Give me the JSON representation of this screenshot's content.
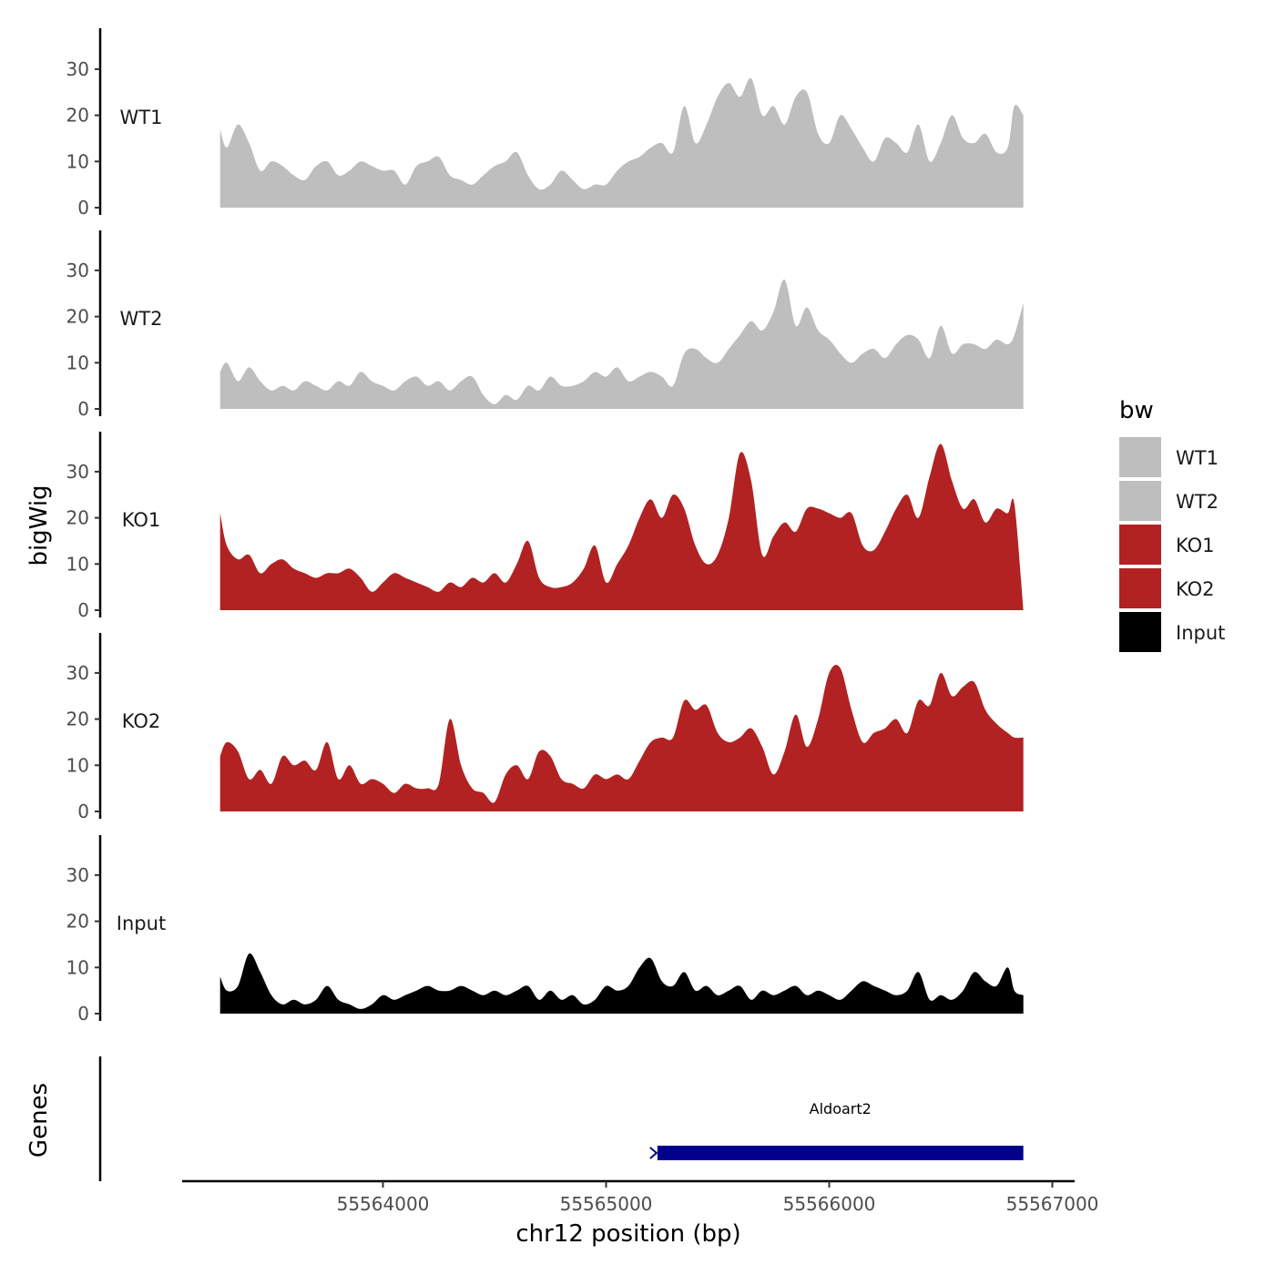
{
  "chart_data": {
    "type": "area",
    "xlabel": "chr12 position (bp)",
    "ylabel": "bigWig",
    "gene_track_label": "Genes",
    "xlim": [
      55563100,
      55567100
    ],
    "x_range_shown": [
      55563270,
      55566870
    ],
    "x_ticks": [
      55564000,
      55565000,
      55566000,
      55567000
    ],
    "x_tick_labels": [
      "55564000",
      "55565000",
      "55566000",
      "55567000"
    ],
    "ylim": [
      0,
      38
    ],
    "y_ticks": [
      0,
      10,
      20,
      30
    ],
    "y_tick_labels": [
      "0",
      "10",
      "20",
      "30"
    ],
    "grid": false,
    "legend": {
      "title": "bw",
      "position": "right",
      "entries": [
        {
          "name": "WT1",
          "color": "#BEBEBE"
        },
        {
          "name": "WT2",
          "color": "#BEBEBE"
        },
        {
          "name": "KO1",
          "color": "#B22222"
        },
        {
          "name": "KO2",
          "color": "#B22222"
        },
        {
          "name": "Input",
          "color": "#000000"
        }
      ]
    },
    "series": [
      {
        "name": "WT1",
        "color": "#BEBEBE",
        "x": [
          55563270,
          55563300,
          55563350,
          55563400,
          55563450,
          55563500,
          55563550,
          55563600,
          55563650,
          55563700,
          55563750,
          55563800,
          55563850,
          55563900,
          55563950,
          55564000,
          55564050,
          55564100,
          55564150,
          55564200,
          55564250,
          55564300,
          55564350,
          55564400,
          55564450,
          55564500,
          55564550,
          55564600,
          55564650,
          55564700,
          55564750,
          55564800,
          55564850,
          55564900,
          55564950,
          55565000,
          55565050,
          55565100,
          55565150,
          55565200,
          55565250,
          55565300,
          55565350,
          55565400,
          55565450,
          55565500,
          55565550,
          55565600,
          55565650,
          55565700,
          55565750,
          55565800,
          55565850,
          55565900,
          55565950,
          55566000,
          55566050,
          55566100,
          55566150,
          55566200,
          55566250,
          55566300,
          55566350,
          55566400,
          55566450,
          55566500,
          55566550,
          55566600,
          55566650,
          55566700,
          55566750,
          55566800,
          55566830,
          55566870
        ],
        "values": [
          17,
          13,
          18,
          14,
          8,
          10,
          9,
          7,
          6,
          9,
          10,
          7,
          8,
          10,
          9,
          8,
          8,
          5,
          9,
          10,
          11,
          7,
          6,
          5,
          7,
          9,
          10,
          12,
          7,
          4,
          5,
          8,
          6,
          4,
          5,
          5,
          8,
          10,
          11,
          13,
          14,
          12,
          22,
          14,
          18,
          24,
          27,
          24,
          28,
          20,
          22,
          18,
          24,
          25,
          16,
          14,
          20,
          17,
          13,
          10,
          15,
          14,
          12,
          18,
          10,
          14,
          20,
          15,
          14,
          16,
          12,
          13,
          22,
          20
        ]
      },
      {
        "name": "WT2",
        "color": "#BEBEBE",
        "x": [
          55563270,
          55563300,
          55563350,
          55563400,
          55563450,
          55563500,
          55563550,
          55563600,
          55563650,
          55563700,
          55563750,
          55563800,
          55563850,
          55563900,
          55563950,
          55564000,
          55564050,
          55564100,
          55564150,
          55564200,
          55564250,
          55564300,
          55564350,
          55564400,
          55564450,
          55564500,
          55564550,
          55564600,
          55564650,
          55564700,
          55564750,
          55564800,
          55564850,
          55564900,
          55564950,
          55565000,
          55565050,
          55565100,
          55565150,
          55565200,
          55565250,
          55565300,
          55565350,
          55565400,
          55565450,
          55565500,
          55565550,
          55565600,
          55565650,
          55565700,
          55565750,
          55565800,
          55565850,
          55565900,
          55565950,
          55566000,
          55566050,
          55566100,
          55566150,
          55566200,
          55566250,
          55566300,
          55566350,
          55566400,
          55566450,
          55566500,
          55566550,
          55566600,
          55566650,
          55566700,
          55566750,
          55566800,
          55566830,
          55566870
        ],
        "values": [
          8,
          10,
          6,
          9,
          6,
          4,
          5,
          4,
          6,
          5,
          4,
          6,
          5,
          8,
          6,
          5,
          4,
          6,
          7,
          5,
          6,
          4,
          6,
          7,
          3,
          1,
          3,
          2,
          5,
          4,
          7,
          5,
          5,
          6,
          8,
          7,
          9,
          6,
          7,
          8,
          7,
          5,
          12,
          13,
          11,
          10,
          13,
          16,
          19,
          17,
          21,
          28,
          18,
          22,
          17,
          15,
          12,
          10,
          12,
          13,
          11,
          14,
          16,
          15,
          11,
          18,
          12,
          14,
          14,
          13,
          15,
          14,
          16,
          23
        ]
      },
      {
        "name": "KO1",
        "color": "#B22222",
        "x": [
          55563270,
          55563300,
          55563350,
          55563400,
          55563450,
          55563500,
          55563550,
          55563600,
          55563650,
          55563700,
          55563750,
          55563800,
          55563850,
          55563900,
          55563950,
          55564000,
          55564050,
          55564100,
          55564150,
          55564200,
          55564250,
          55564300,
          55564350,
          55564400,
          55564450,
          55564500,
          55564550,
          55564600,
          55564650,
          55564700,
          55564750,
          55564800,
          55564850,
          55564900,
          55564950,
          55565000,
          55565050,
          55565100,
          55565150,
          55565200,
          55565250,
          55565300,
          55565350,
          55565400,
          55565450,
          55565500,
          55565550,
          55565600,
          55565650,
          55565700,
          55565750,
          55565800,
          55565850,
          55565900,
          55565950,
          55566000,
          55566050,
          55566100,
          55566150,
          55566200,
          55566250,
          55566300,
          55566350,
          55566400,
          55566450,
          55566500,
          55566550,
          55566600,
          55566650,
          55566700,
          55566750,
          55566800,
          55566830,
          55566870
        ],
        "values": [
          21,
          14,
          11,
          12,
          8,
          10,
          11,
          9,
          8,
          7,
          8,
          8,
          9,
          7,
          4,
          6,
          8,
          7,
          6,
          5,
          4,
          6,
          5,
          7,
          6,
          8,
          6,
          10,
          15,
          7,
          5,
          5,
          6,
          9,
          14,
          6,
          10,
          14,
          20,
          24,
          20,
          25,
          22,
          14,
          10,
          12,
          20,
          34,
          28,
          12,
          16,
          19,
          17,
          22,
          22,
          21,
          20,
          21,
          14,
          13,
          17,
          22,
          25,
          20,
          29,
          36,
          28,
          22,
          24,
          19,
          22,
          21,
          23,
          0
        ]
      },
      {
        "name": "KO2",
        "color": "#B22222",
        "x": [
          55563270,
          55563300,
          55563350,
          55563400,
          55563450,
          55563500,
          55563550,
          55563600,
          55563650,
          55563700,
          55563750,
          55563800,
          55563850,
          55563900,
          55563950,
          55564000,
          55564050,
          55564100,
          55564150,
          55564200,
          55564250,
          55564300,
          55564350,
          55564400,
          55564450,
          55564500,
          55564550,
          55564600,
          55564650,
          55564700,
          55564750,
          55564800,
          55564850,
          55564900,
          55564950,
          55565000,
          55565050,
          55565100,
          55565150,
          55565200,
          55565250,
          55565300,
          55565350,
          55565400,
          55565450,
          55565500,
          55565550,
          55565600,
          55565650,
          55565700,
          55565750,
          55565800,
          55565850,
          55565900,
          55565950,
          55566000,
          55566050,
          55566100,
          55566150,
          55566200,
          55566250,
          55566300,
          55566350,
          55566400,
          55566450,
          55566500,
          55566550,
          55566600,
          55566650,
          55566700,
          55566750,
          55566800,
          55566830,
          55566870
        ],
        "values": [
          12,
          15,
          13,
          7,
          9,
          6,
          12,
          10,
          11,
          9,
          15,
          7,
          10,
          6,
          7,
          6,
          4,
          6,
          5,
          5,
          6,
          20,
          10,
          5,
          4,
          2,
          8,
          10,
          7,
          13,
          12,
          7,
          6,
          5,
          8,
          7,
          8,
          7,
          11,
          15,
          16,
          16,
          24,
          22,
          23,
          17,
          15,
          16,
          18,
          14,
          8,
          13,
          21,
          14,
          20,
          30,
          31,
          22,
          15,
          17,
          18,
          20,
          17,
          24,
          23,
          30,
          25,
          27,
          28,
          22,
          19,
          17,
          16,
          16
        ]
      },
      {
        "name": "Input",
        "color": "#000000",
        "x": [
          55563270,
          55563300,
          55563350,
          55563400,
          55563450,
          55563500,
          55563550,
          55563600,
          55563650,
          55563700,
          55563750,
          55563800,
          55563850,
          55563900,
          55563950,
          55564000,
          55564050,
          55564100,
          55564150,
          55564200,
          55564250,
          55564300,
          55564350,
          55564400,
          55564450,
          55564500,
          55564550,
          55564600,
          55564650,
          55564700,
          55564750,
          55564800,
          55564850,
          55564900,
          55564950,
          55565000,
          55565050,
          55565100,
          55565150,
          55565200,
          55565250,
          55565300,
          55565350,
          55565400,
          55565450,
          55565500,
          55565550,
          55565600,
          55565650,
          55565700,
          55565750,
          55565800,
          55565850,
          55565900,
          55565950,
          55566000,
          55566050,
          55566100,
          55566150,
          55566200,
          55566250,
          55566300,
          55566350,
          55566400,
          55566450,
          55566500,
          55566550,
          55566600,
          55566650,
          55566700,
          55566750,
          55566800,
          55566830,
          55566870
        ],
        "values": [
          8,
          5,
          6,
          13,
          9,
          4,
          2,
          3,
          2,
          3,
          6,
          3,
          2,
          1,
          2,
          4,
          3,
          4,
          5,
          6,
          5,
          5,
          6,
          5,
          4,
          5,
          4,
          5,
          6,
          3,
          5,
          3,
          4,
          2,
          3,
          6,
          5,
          6,
          10,
          12,
          7,
          6,
          9,
          5,
          6,
          4,
          5,
          6,
          3,
          5,
          4,
          5,
          6,
          4,
          5,
          4,
          3,
          5,
          7,
          6,
          5,
          4,
          5,
          9,
          3,
          4,
          3,
          5,
          9,
          7,
          6,
          10,
          5,
          4
        ]
      }
    ],
    "genes": [
      {
        "name": "Aldoart2",
        "start": 55565230,
        "end": 55566870,
        "color": "#00008B"
      }
    ]
  }
}
